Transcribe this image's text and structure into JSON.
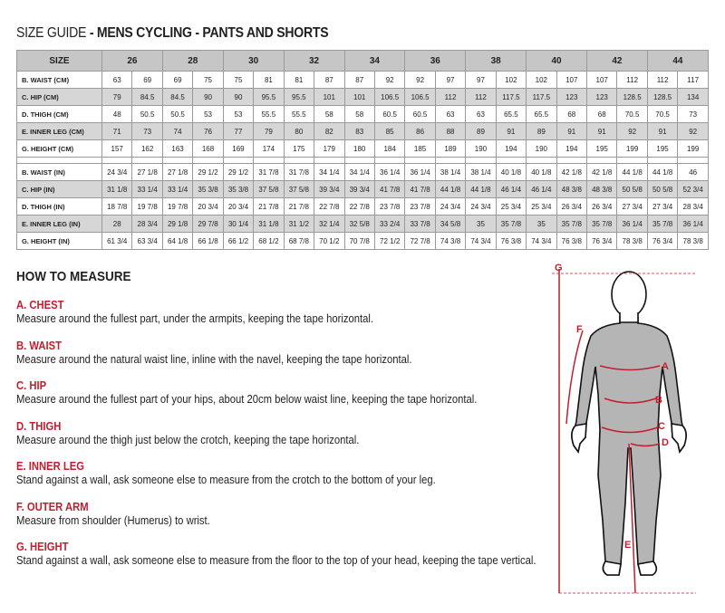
{
  "title": {
    "prefix": "SIZE GUIDE",
    "main": " - MENS CYCLING - PANTS AND SHORTS"
  },
  "table": {
    "header_label": "SIZE",
    "sizes": [
      "26",
      "28",
      "30",
      "32",
      "34",
      "36",
      "38",
      "40",
      "42",
      "44"
    ],
    "cm_rows": [
      {
        "label": "B. WAIST (CM)",
        "values": [
          "63",
          "69",
          "69",
          "75",
          "75",
          "81",
          "81",
          "87",
          "87",
          "92",
          "92",
          "97",
          "97",
          "102",
          "102",
          "107",
          "107",
          "112",
          "112",
          "117"
        ]
      },
      {
        "label": "C. HIP (CM)",
        "values": [
          "79",
          "84.5",
          "84.5",
          "90",
          "90",
          "95.5",
          "95.5",
          "101",
          "101",
          "106.5",
          "106.5",
          "112",
          "112",
          "117.5",
          "117.5",
          "123",
          "123",
          "128.5",
          "128.5",
          "134"
        ]
      },
      {
        "label": "D. THIGH (CM)",
        "values": [
          "48",
          "50.5",
          "50.5",
          "53",
          "53",
          "55.5",
          "55.5",
          "58",
          "58",
          "60.5",
          "60.5",
          "63",
          "63",
          "65.5",
          "65.5",
          "68",
          "68",
          "70.5",
          "70.5",
          "73"
        ]
      },
      {
        "label": "E. INNER LEG (CM)",
        "values": [
          "71",
          "73",
          "74",
          "76",
          "77",
          "79",
          "80",
          "82",
          "83",
          "85",
          "86",
          "88",
          "89",
          "91",
          "89",
          "91",
          "91",
          "92",
          "91",
          "92"
        ]
      },
      {
        "label": "G. HEIGHT (CM)",
        "values": [
          "157",
          "162",
          "163",
          "168",
          "169",
          "174",
          "175",
          "179",
          "180",
          "184",
          "185",
          "189",
          "190",
          "194",
          "190",
          "194",
          "195",
          "199",
          "195",
          "199"
        ]
      }
    ],
    "in_rows": [
      {
        "label": "B. WAIST (IN)",
        "values": [
          "24 3/4",
          "27 1/8",
          "27 1/8",
          "29 1/2",
          "29 1/2",
          "31 7/8",
          "31 7/8",
          "34 1/4",
          "34 1/4",
          "36 1/4",
          "36 1/4",
          "38 1/4",
          "38 1/4",
          "40 1/8",
          "40 1/8",
          "42 1/8",
          "42 1/8",
          "44 1/8",
          "44 1/8",
          "46"
        ]
      },
      {
        "label": "C. HIP (IN)",
        "values": [
          "31 1/8",
          "33 1/4",
          "33 1/4",
          "35 3/8",
          "35 3/8",
          "37 5/8",
          "37 5/8",
          "39 3/4",
          "39 3/4",
          "41 7/8",
          "41 7/8",
          "44 1/8",
          "44 1/8",
          "46 1/4",
          "46 1/4",
          "48 3/8",
          "48 3/8",
          "50 5/8",
          "50 5/8",
          "52 3/4"
        ]
      },
      {
        "label": "D. THIGH (IN)",
        "values": [
          "18 7/8",
          "19 7/8",
          "19 7/8",
          "20 3/4",
          "20 3/4",
          "21 7/8",
          "21 7/8",
          "22 7/8",
          "22 7/8",
          "23 7/8",
          "23 7/8",
          "24 3/4",
          "24 3/4",
          "25 3/4",
          "25 3/4",
          "26 3/4",
          "26 3/4",
          "27 3/4",
          "27 3/4",
          "28 3/4"
        ]
      },
      {
        "label": "E. INNER LEG (IN)",
        "values": [
          "28",
          "28 3/4",
          "29 1/8",
          "29 7/8",
          "30 1/4",
          "31 1/8",
          "31 1/2",
          "32 1/4",
          "32 5/8",
          "33 2/4",
          "33 7/8",
          "34 5/8",
          "35",
          "35 7/8",
          "35",
          "35 7/8",
          "35 7/8",
          "36 1/4",
          "35 7/8",
          "36 1/4"
        ]
      },
      {
        "label": "G. HEIGHT (IN)",
        "values": [
          "61 3/4",
          "63 3/4",
          "64 1/8",
          "66 1/8",
          "66 1/2",
          "68 1/2",
          "68 7/8",
          "70 1/2",
          "70 7/8",
          "72 1/2",
          "72 7/8",
          "74 3/8",
          "74 3/4",
          "76 3/8",
          "74 3/4",
          "76 3/8",
          "76 3/4",
          "78 3/8",
          "76 3/4",
          "78 3/8"
        ]
      }
    ]
  },
  "how_to_measure": {
    "heading": "HOW TO MEASURE",
    "items": [
      {
        "title": "A. CHEST",
        "text": "Measure around the fullest part, under the armpits, keeping the tape horizontal."
      },
      {
        "title": "B. WAIST",
        "text": "Measure around the natural waist line, inline with the navel, keeping the tape horizontal."
      },
      {
        "title": "C. HIP",
        "text": "Measure around the fullest part of your hips, about 20cm below waist line, keeping the tape horizontal."
      },
      {
        "title": "D. THIGH",
        "text": "Measure around the thigh just below the crotch, keeping the tape horizontal."
      },
      {
        "title": "E. INNER LEG",
        "text": "Stand against a wall, ask someone else to measure from the crotch to the bottom of your leg."
      },
      {
        "title": "F. OUTER ARM",
        "text": "Measure from shoulder (Humerus) to wrist."
      },
      {
        "title": "G. HEIGHT",
        "text": "Stand against a wall, ask someone else to measure from the floor to the top of your head, keeping the tape vertical."
      }
    ]
  },
  "figure": {
    "labels": {
      "A": "A",
      "B": "B",
      "C": "C",
      "D": "D",
      "E": "E",
      "F": "F",
      "G": "G"
    }
  },
  "colors": {
    "accent": "#c41e2e",
    "header_bg": "#c6c6c6",
    "stripe_bg": "#d6d6d6",
    "suit": "#b5b5b5"
  }
}
